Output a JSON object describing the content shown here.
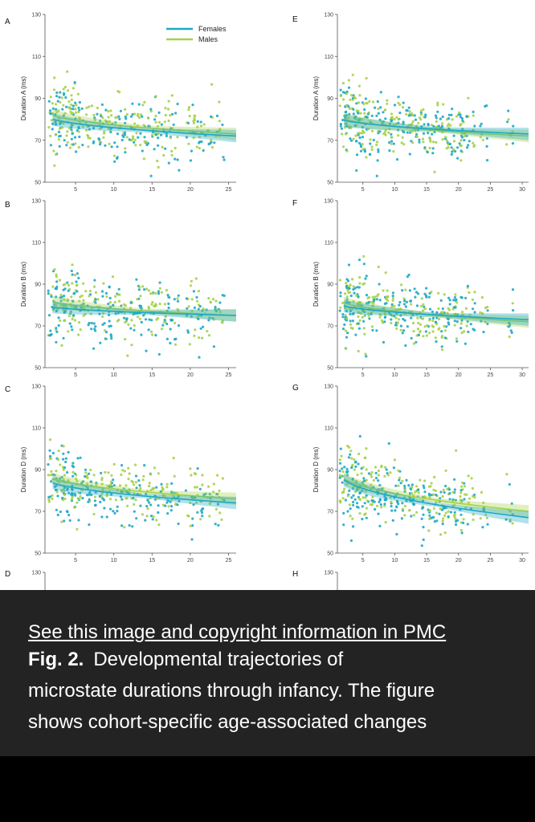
{
  "colors": {
    "female": "#1fa8c4",
    "male": "#a6d14a",
    "overlay": "#1c1c1c",
    "bottom": "#000000"
  },
  "overlay": {
    "link_text": "See this image and copyright information in PMC",
    "fig_label": "Fig. 2.",
    "caption_lines": [
      "Developmental trajectories of",
      "microstate durations through infancy. The figure",
      "shows cohort-specific age-associated changes"
    ]
  },
  "chart_data": [
    {
      "panel": "A",
      "type": "scatter",
      "ylabel": "Duration A (ms)",
      "ylim": [
        50,
        130
      ],
      "yticks": [
        50,
        70,
        90,
        110,
        130
      ],
      "xlim": [
        1,
        26
      ],
      "xticks": [
        5,
        10,
        15,
        20,
        25
      ],
      "trend": {
        "females": [
          82,
          72
        ],
        "males": [
          84,
          73
        ]
      },
      "legend": [
        "Females",
        "Males"
      ]
    },
    {
      "panel": "E",
      "type": "scatter",
      "ylabel": "Duration A (ms)",
      "ylim": [
        50,
        130
      ],
      "yticks": [
        50,
        70,
        90,
        110,
        130
      ],
      "xlim": [
        1,
        31
      ],
      "xticks": [
        5,
        10,
        15,
        20,
        25,
        30
      ],
      "trend": {
        "females": [
          81,
          73
        ],
        "males": [
          82,
          72
        ]
      }
    },
    {
      "panel": "B",
      "type": "scatter",
      "ylabel": "Duration B (ms)",
      "ylim": [
        50,
        130
      ],
      "yticks": [
        50,
        70,
        90,
        110,
        130
      ],
      "xlim": [
        1,
        26
      ],
      "xticks": [
        5,
        10,
        15,
        20,
        25
      ],
      "trend": {
        "females": [
          80,
          75
        ],
        "males": [
          83,
          75
        ]
      }
    },
    {
      "panel": "F",
      "type": "scatter",
      "ylabel": "Duration B (ms)",
      "ylim": [
        50,
        130
      ],
      "yticks": [
        50,
        70,
        90,
        110,
        130
      ],
      "xlim": [
        1,
        31
      ],
      "xticks": [
        5,
        10,
        15,
        20,
        25,
        30
      ],
      "trend": {
        "females": [
          81,
          73
        ],
        "males": [
          83,
          72
        ]
      }
    },
    {
      "panel": "C",
      "type": "scatter",
      "ylabel": "Duration D (ms)",
      "ylim": [
        50,
        130
      ],
      "yticks": [
        50,
        70,
        90,
        110,
        130
      ],
      "xlim": [
        1,
        26
      ],
      "xticks": [
        5,
        10,
        15,
        20,
        25
      ],
      "trend": {
        "females": [
          86,
          74
        ],
        "males": [
          88,
          76
        ]
      }
    },
    {
      "panel": "G",
      "type": "scatter",
      "ylabel": "Duration D (ms)",
      "ylim": [
        50,
        130
      ],
      "yticks": [
        50,
        70,
        90,
        110,
        130
      ],
      "xlim": [
        1,
        31
      ],
      "xticks": [
        5,
        10,
        15,
        20,
        25,
        30
      ],
      "trend": {
        "females": [
          89,
          67
        ],
        "males": [
          89,
          70
        ]
      }
    },
    {
      "panel": "D",
      "type": "scatter",
      "ylabel": "",
      "ylim": [
        50,
        130
      ],
      "yticks": [
        130
      ],
      "xlim": [
        1,
        26
      ],
      "xticks": []
    },
    {
      "panel": "H",
      "type": "scatter",
      "ylabel": "",
      "ylim": [
        50,
        130
      ],
      "yticks": [
        130
      ],
      "xlim": [
        1,
        31
      ],
      "xticks": []
    }
  ]
}
